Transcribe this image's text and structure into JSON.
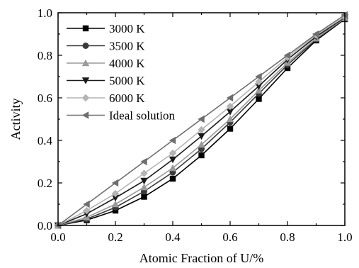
{
  "chart_data": {
    "type": "line",
    "title": "",
    "xlabel": "Atomic Fraction of U/%",
    "ylabel": "Activity",
    "xlim": [
      0.0,
      1.0
    ],
    "ylim": [
      0.0,
      1.0
    ],
    "x": [
      0.0,
      0.1,
      0.2,
      0.3,
      0.4,
      0.5,
      0.6,
      0.7,
      0.8,
      0.9,
      1.0
    ],
    "x_ticks": [
      "0.0",
      "0.2",
      "0.4",
      "0.6",
      "0.8",
      "1.0"
    ],
    "y_ticks": [
      "0.0",
      "0.2",
      "0.4",
      "0.6",
      "0.8",
      "1.0"
    ],
    "legend_position": "top-left",
    "grid": false,
    "series": [
      {
        "name": "3000 K",
        "marker": "square",
        "color": "#000000",
        "values": [
          0.0,
          0.025,
          0.07,
          0.135,
          0.22,
          0.33,
          0.455,
          0.595,
          0.74,
          0.87,
          0.97
        ]
      },
      {
        "name": "3500 K",
        "marker": "circle",
        "color": "#3a3a3a",
        "values": [
          0.0,
          0.03,
          0.085,
          0.16,
          0.25,
          0.36,
          0.485,
          0.62,
          0.755,
          0.875,
          0.973
        ]
      },
      {
        "name": "4000 K",
        "marker": "triangle-up",
        "color": "#9a9a9a",
        "values": [
          0.0,
          0.038,
          0.1,
          0.18,
          0.27,
          0.38,
          0.5,
          0.635,
          0.765,
          0.88,
          0.975
        ]
      },
      {
        "name": "5000 K",
        "marker": "triangle-down",
        "color": "#1a1a1a",
        "values": [
          0.0,
          0.055,
          0.13,
          0.21,
          0.31,
          0.42,
          0.535,
          0.655,
          0.78,
          0.888,
          0.978
        ]
      },
      {
        "name": "6000 K",
        "marker": "diamond",
        "color": "#b4b4b4",
        "values": [
          0.0,
          0.07,
          0.15,
          0.245,
          0.34,
          0.45,
          0.56,
          0.675,
          0.79,
          0.895,
          0.982
        ]
      },
      {
        "name": "Ideal solution",
        "marker": "triangle-left",
        "color": "#6e6e6e",
        "values": [
          0.0,
          0.1,
          0.2,
          0.3,
          0.4,
          0.5,
          0.6,
          0.7,
          0.8,
          0.9,
          0.99
        ]
      }
    ]
  }
}
